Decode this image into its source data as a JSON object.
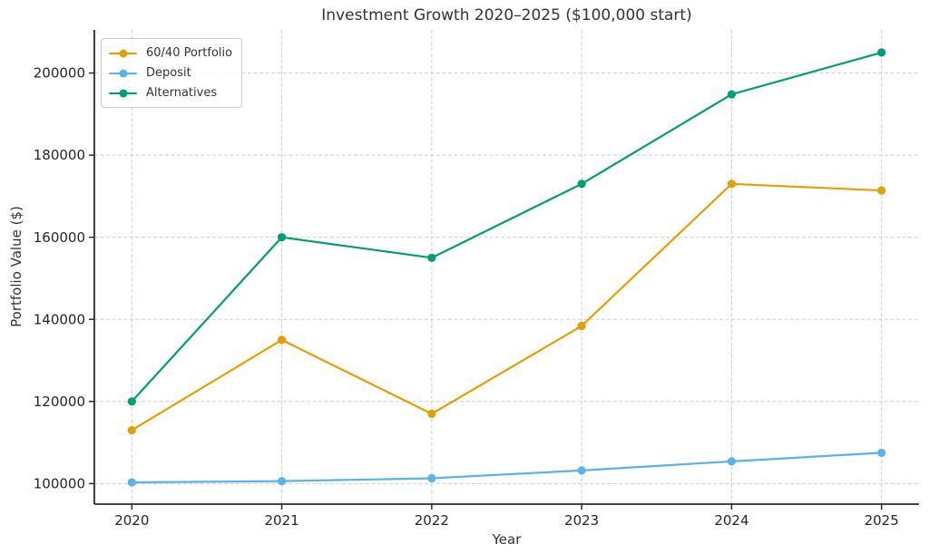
{
  "chart_data": {
    "type": "line",
    "title": "Investment Growth 2020–2025 ($100,000 start)",
    "xlabel": "Year",
    "ylabel": "Portfolio Value ($)",
    "x": [
      2020,
      2021,
      2022,
      2023,
      2024,
      2025
    ],
    "series": [
      {
        "name": "60/40 Portfolio",
        "color": "#E69F00",
        "values": [
          113000,
          135000,
          117000,
          138400,
          173000,
          171400
        ]
      },
      {
        "name": "Deposit",
        "color": "#56B4E9",
        "values": [
          100300,
          100600,
          101300,
          103200,
          105400,
          107500
        ]
      },
      {
        "name": "Alternatives",
        "color": "#009E73",
        "values": [
          120000,
          160000,
          155000,
          173000,
          194800,
          205000
        ]
      }
    ],
    "xticks": [
      2020,
      2021,
      2022,
      2023,
      2024,
      2025
    ],
    "yticks": [
      100000,
      120000,
      140000,
      160000,
      180000,
      200000
    ],
    "xlim": [
      2019.75,
      2025.25
    ],
    "ylim": [
      95000,
      210500
    ],
    "grid": true,
    "legend_position": "upper left"
  },
  "style": {
    "grid_color": "#cfcfcf",
    "spine_color": "#2b2b2b",
    "tick_label_color": "#262626",
    "background": "#ffffff"
  }
}
